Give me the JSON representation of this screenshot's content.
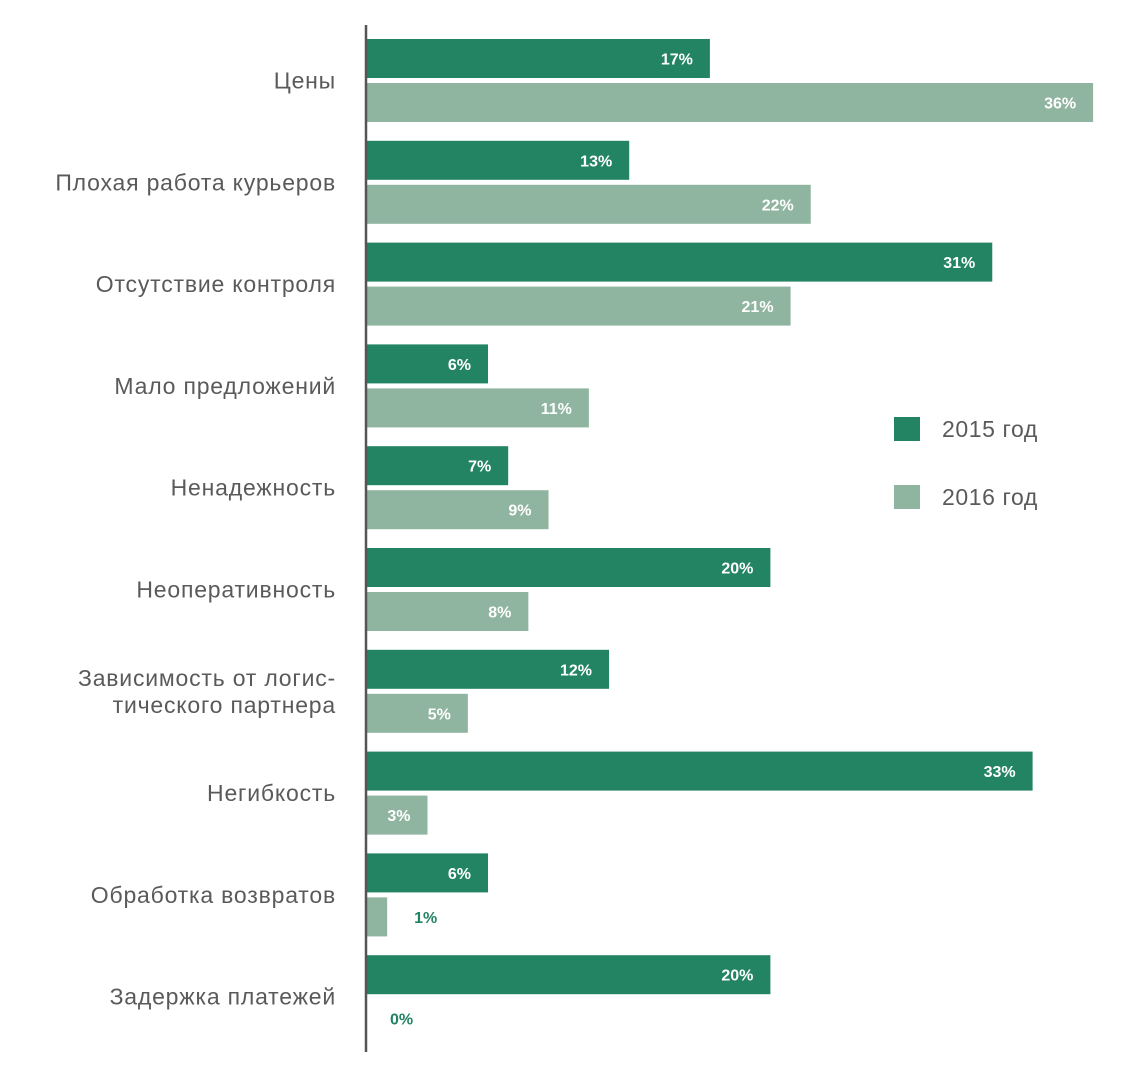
{
  "chart_data": {
    "type": "bar",
    "orientation": "horizontal",
    "categories": [
      "Цены",
      "Плохая работа курьеров",
      "Отсутствие контроля",
      "Мало предложений",
      "Ненадежность",
      "Неоперативность",
      "Зависимость от логис-\nтического партнера",
      "Негибкость",
      "Обработка возвратов",
      "Задержка платежей"
    ],
    "series": [
      {
        "name": "2015 год",
        "color": "#238463",
        "values": [
          17,
          13,
          31,
          6,
          7,
          20,
          12,
          33,
          6,
          20
        ],
        "labels": [
          "17%",
          "13%",
          "31%",
          "6%",
          "7%",
          "20%",
          "12%",
          "33%",
          "6%",
          "20%"
        ]
      },
      {
        "name": "2016 год",
        "color": "#8fb49f",
        "values": [
          36,
          22,
          21,
          11,
          9,
          8,
          5,
          3,
          1,
          0
        ],
        "labels": [
          "36%",
          "22%",
          "21%",
          "11%",
          "9%",
          "8%",
          "5%",
          "3%",
          "1%",
          "0%"
        ]
      }
    ],
    "xlim": [
      0,
      36
    ],
    "grid": false,
    "legend": "right",
    "label_color_outside": "#238463",
    "axis_color": "#555555"
  }
}
